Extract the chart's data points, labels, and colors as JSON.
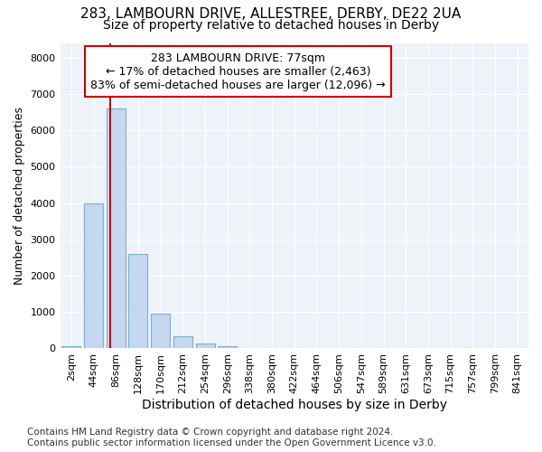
{
  "title_line1": "283, LAMBOURN DRIVE, ALLESTREE, DERBY, DE22 2UA",
  "title_line2": "Size of property relative to detached houses in Derby",
  "xlabel": "Distribution of detached houses by size in Derby",
  "ylabel": "Number of detached properties",
  "categories": [
    "2sqm",
    "44sqm",
    "86sqm",
    "128sqm",
    "170sqm",
    "212sqm",
    "254sqm",
    "296sqm",
    "338sqm",
    "380sqm",
    "422sqm",
    "464sqm",
    "506sqm",
    "547sqm",
    "589sqm",
    "631sqm",
    "673sqm",
    "715sqm",
    "757sqm",
    "799sqm",
    "841sqm"
  ],
  "bar_heights": [
    50,
    4000,
    6600,
    2600,
    950,
    330,
    130,
    50,
    0,
    0,
    0,
    0,
    0,
    0,
    0,
    0,
    0,
    0,
    0,
    0,
    0
  ],
  "bar_color": "#c5d8f0",
  "bar_edge_color": "#7bafd4",
  "vline_color": "#cc0000",
  "vline_pos": 1.75,
  "annotation_text_line1": "283 LAMBOURN DRIVE: 77sqm",
  "annotation_text_line2": "← 17% of detached houses are smaller (2,463)",
  "annotation_text_line3": "83% of semi-detached houses are larger (12,096) →",
  "annotation_box_color": "#ffffff",
  "annotation_box_edge_color": "#cc0000",
  "ylim": [
    0,
    8400
  ],
  "yticks": [
    0,
    1000,
    2000,
    3000,
    4000,
    5000,
    6000,
    7000,
    8000
  ],
  "background_color": "#ffffff",
  "plot_bg_color": "#eef2fb",
  "grid_color": "#ffffff",
  "footer_text": "Contains HM Land Registry data © Crown copyright and database right 2024.\nContains public sector information licensed under the Open Government Licence v3.0.",
  "title_fontsize": 11,
  "subtitle_fontsize": 10,
  "xlabel_fontsize": 10,
  "ylabel_fontsize": 9,
  "tick_fontsize": 8,
  "annotation_fontsize": 9,
  "footer_fontsize": 7.5
}
